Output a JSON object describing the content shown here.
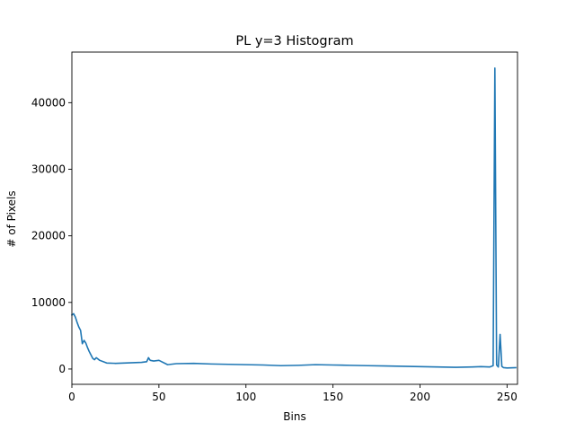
{
  "chart_data": {
    "type": "line",
    "title": "PL y=3 Histogram",
    "xlabel": "Bins",
    "ylabel": "# of Pixels",
    "xlim": [
      0,
      256
    ],
    "ylim": [
      -2300,
      47600
    ],
    "xticks": [
      0,
      50,
      100,
      150,
      200,
      250
    ],
    "yticks": [
      0,
      10000,
      20000,
      30000,
      40000
    ],
    "grid": false,
    "legend": "none",
    "series": [
      {
        "color": "#1f77b4",
        "x": [
          0,
          1,
          2,
          3,
          4,
          5,
          6,
          7,
          8,
          9,
          10,
          12,
          13,
          14,
          16,
          18,
          20,
          25,
          30,
          35,
          40,
          43,
          44,
          45,
          47,
          50,
          55,
          60,
          70,
          80,
          90,
          100,
          110,
          120,
          130,
          140,
          150,
          160,
          170,
          180,
          190,
          200,
          210,
          220,
          230,
          235,
          240,
          242,
          243,
          244,
          245,
          246,
          247,
          248,
          250,
          255
        ],
        "y": [
          8100,
          8300,
          7800,
          7000,
          6300,
          5800,
          3800,
          4300,
          3900,
          3200,
          2600,
          1600,
          1400,
          1700,
          1300,
          1100,
          900,
          850,
          900,
          950,
          1000,
          1100,
          1700,
          1300,
          1200,
          1300,
          650,
          800,
          850,
          750,
          700,
          650,
          600,
          500,
          550,
          650,
          600,
          550,
          500,
          450,
          400,
          350,
          300,
          250,
          300,
          350,
          300,
          500,
          45200,
          600,
          300,
          5200,
          400,
          200,
          150,
          200
        ]
      }
    ]
  }
}
